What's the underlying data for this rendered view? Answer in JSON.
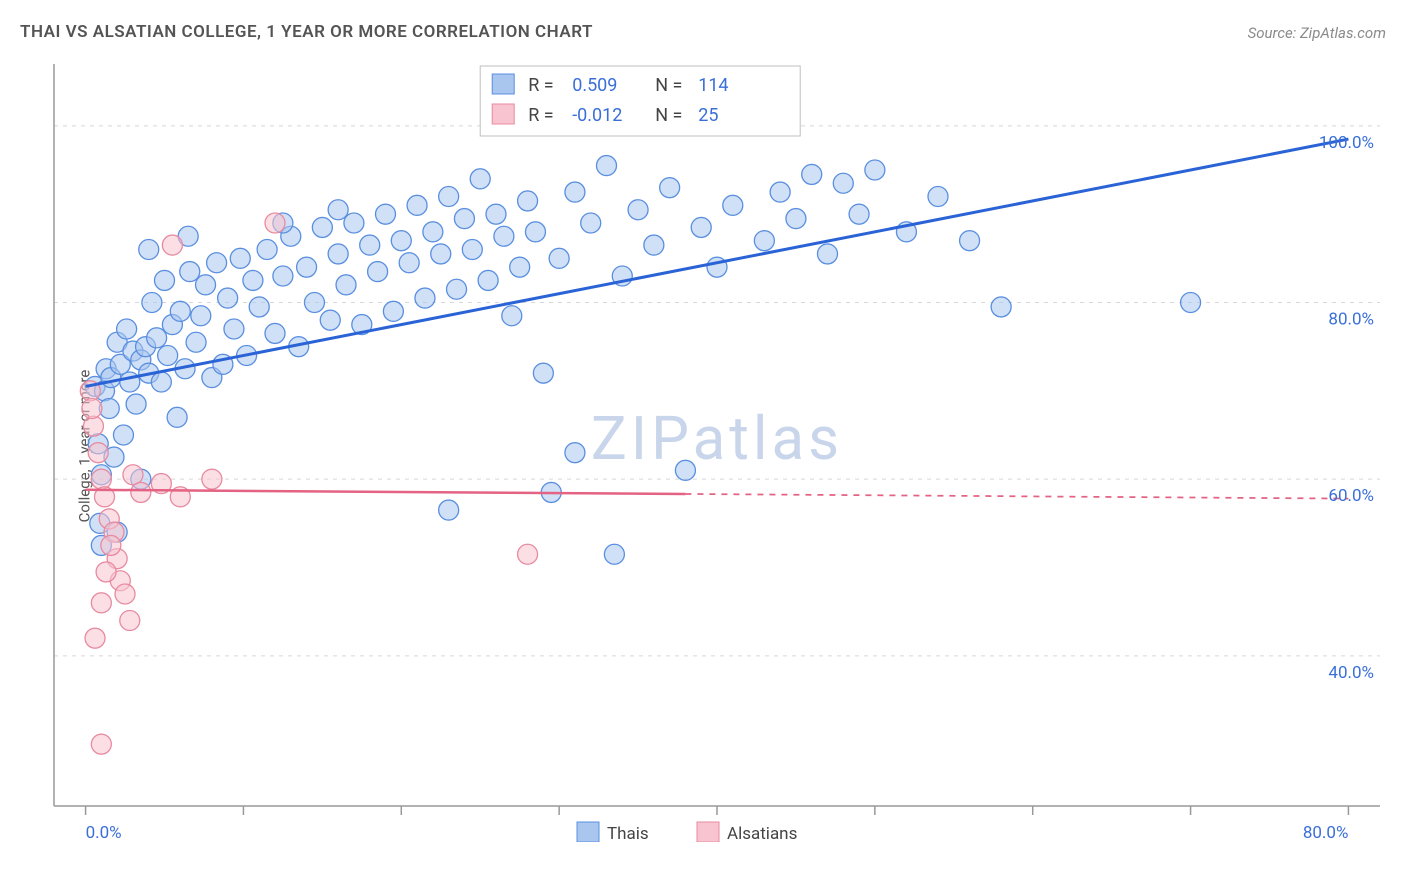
{
  "title": "THAI VS ALSATIAN COLLEGE, 1 YEAR OR MORE CORRELATION CHART",
  "source_label": "Source: ZipAtlas.com",
  "watermark": "ZIPatlas",
  "ylabel": "College, 1 year or more",
  "chart": {
    "type": "scatter",
    "background_color": "#ffffff",
    "grid_color": "#d8d8d8",
    "axis_color": "#999999",
    "tick_color": "#999999",
    "label_color": "#3a6fd8",
    "xlim": [
      -2,
      82
    ],
    "ylim": [
      23,
      107
    ],
    "xtick_positions": [
      0,
      10,
      20,
      30,
      40,
      50,
      60,
      70,
      80
    ],
    "xtick_labels_shown": {
      "0": "0.0%",
      "80": "80.0%"
    },
    "ytick_positions": [
      40,
      60,
      80,
      100
    ],
    "ytick_labels": {
      "40": "40.0%",
      "60": "60.0%",
      "80": "80.0%",
      "100": "100.0%"
    },
    "marker_radius": 10,
    "marker_radius_large": 16,
    "legend_top": {
      "border_color": "#bfbfbf",
      "bg": "#ffffff",
      "rows": [
        {
          "swatch_fill": "#a9c6ef",
          "swatch_stroke": "#5a8fe0",
          "R_label": "R = ",
          "R_value": "0.509",
          "N_label": "N = ",
          "N_value": "114"
        },
        {
          "swatch_fill": "#f7c4cf",
          "swatch_stroke": "#e88aa0",
          "R_label": "R = ",
          "R_value": "-0.012",
          "N_label": "N = ",
          "N_value": "25"
        }
      ]
    },
    "legend_bottom": {
      "items": [
        {
          "swatch_fill": "#a9c6ef",
          "swatch_stroke": "#5a8fe0",
          "label": "Thais"
        },
        {
          "swatch_fill": "#f7c4cf",
          "swatch_stroke": "#e88aa0",
          "label": "Alsatians"
        }
      ]
    },
    "series": [
      {
        "name": "Thais",
        "marker_fill": "#a9c6ef",
        "marker_fill_opacity": 0.55,
        "marker_stroke": "#5a8fe0",
        "trend": {
          "x1": 0,
          "y1": 70.5,
          "x2": 80,
          "y2": 98.5,
          "color": "#2a63d6",
          "width": 3,
          "solid_until_x": 80
        },
        "points": [
          [
            0.6,
            70.5
          ],
          [
            0.8,
            64.0
          ],
          [
            0.9,
            55.0
          ],
          [
            1.0,
            60.5
          ],
          [
            1.2,
            70.0
          ],
          [
            1.3,
            72.5
          ],
          [
            1.5,
            68.0
          ],
          [
            1.6,
            71.5
          ],
          [
            1.8,
            62.5
          ],
          [
            2.0,
            75.5
          ],
          [
            2.2,
            73.0
          ],
          [
            2.4,
            65.0
          ],
          [
            2.6,
            77.0
          ],
          [
            2.8,
            71.0
          ],
          [
            3.0,
            74.5
          ],
          [
            3.2,
            68.5
          ],
          [
            3.5,
            73.5
          ],
          [
            3.8,
            75.0
          ],
          [
            4.0,
            72.0
          ],
          [
            4.2,
            80.0
          ],
          [
            4.5,
            76.0
          ],
          [
            4.8,
            71.0
          ],
          [
            5.0,
            82.5
          ],
          [
            5.2,
            74.0
          ],
          [
            5.5,
            77.5
          ],
          [
            5.8,
            67.0
          ],
          [
            6.0,
            79.0
          ],
          [
            6.3,
            72.5
          ],
          [
            6.6,
            83.5
          ],
          [
            7.0,
            75.5
          ],
          [
            7.3,
            78.5
          ],
          [
            7.6,
            82.0
          ],
          [
            8.0,
            71.5
          ],
          [
            8.3,
            84.5
          ],
          [
            8.7,
            73.0
          ],
          [
            9.0,
            80.5
          ],
          [
            9.4,
            77.0
          ],
          [
            9.8,
            85.0
          ],
          [
            10.2,
            74.0
          ],
          [
            10.6,
            82.5
          ],
          [
            11.0,
            79.5
          ],
          [
            11.5,
            86.0
          ],
          [
            12.0,
            76.5
          ],
          [
            12.5,
            83.0
          ],
          [
            13.0,
            87.5
          ],
          [
            13.5,
            75.0
          ],
          [
            14.0,
            84.0
          ],
          [
            14.5,
            80.0
          ],
          [
            15.0,
            88.5
          ],
          [
            15.5,
            78.0
          ],
          [
            16.0,
            85.5
          ],
          [
            16.5,
            82.0
          ],
          [
            17.0,
            89.0
          ],
          [
            17.5,
            77.5
          ],
          [
            18.0,
            86.5
          ],
          [
            18.5,
            83.5
          ],
          [
            19.0,
            90.0
          ],
          [
            19.5,
            79.0
          ],
          [
            20.0,
            87.0
          ],
          [
            20.5,
            84.5
          ],
          [
            21.0,
            91.0
          ],
          [
            21.5,
            80.5
          ],
          [
            22.0,
            88.0
          ],
          [
            22.5,
            85.5
          ],
          [
            23.0,
            92.0
          ],
          [
            23.5,
            81.5
          ],
          [
            24.0,
            89.5
          ],
          [
            24.5,
            86.0
          ],
          [
            25.0,
            94.0
          ],
          [
            25.5,
            82.5
          ],
          [
            26.0,
            90.0
          ],
          [
            26.5,
            87.5
          ],
          [
            27.0,
            78.5
          ],
          [
            27.5,
            84.0
          ],
          [
            28.0,
            91.5
          ],
          [
            28.5,
            88.0
          ],
          [
            29.0,
            72.0
          ],
          [
            30.0,
            85.0
          ],
          [
            31.0,
            92.5
          ],
          [
            32.0,
            89.0
          ],
          [
            33.0,
            95.5
          ],
          [
            34.0,
            83.0
          ],
          [
            35.0,
            90.5
          ],
          [
            36.0,
            86.5
          ],
          [
            37.0,
            93.0
          ],
          [
            38.0,
            61.0
          ],
          [
            39.0,
            88.5
          ],
          [
            40.0,
            84.0
          ],
          [
            41.0,
            91.0
          ],
          [
            42.0,
            102.0
          ],
          [
            43.0,
            87.0
          ],
          [
            44.0,
            92.5
          ],
          [
            45.0,
            89.5
          ],
          [
            46.0,
            94.5
          ],
          [
            47.0,
            85.5
          ],
          [
            48.0,
            93.5
          ],
          [
            49.0,
            90.0
          ],
          [
            50.0,
            95.0
          ],
          [
            52.0,
            88.0
          ],
          [
            54.0,
            92.0
          ],
          [
            56.0,
            87.0
          ],
          [
            58.0,
            79.5
          ],
          [
            70.0,
            80.0
          ],
          [
            23.0,
            56.5
          ],
          [
            33.5,
            51.5
          ],
          [
            2.0,
            54.0
          ],
          [
            1.0,
            52.5
          ],
          [
            3.5,
            60.0
          ],
          [
            29.5,
            58.5
          ],
          [
            31.0,
            63.0
          ],
          [
            6.5,
            87.5
          ],
          [
            12.5,
            89.0
          ],
          [
            16.0,
            90.5
          ],
          [
            4.0,
            86.0
          ]
        ]
      },
      {
        "name": "Alsatians",
        "marker_fill": "#f7c4cf",
        "marker_fill_opacity": 0.55,
        "marker_stroke": "#e88aa0",
        "trend": {
          "x1": 0,
          "y1": 58.8,
          "x2": 80,
          "y2": 57.8,
          "color": "#e46283",
          "width": 2.5,
          "solid_until_x": 38
        },
        "points": [
          [
            0.3,
            70.0
          ],
          [
            0.5,
            66.0
          ],
          [
            0.8,
            63.0
          ],
          [
            1.0,
            60.0
          ],
          [
            1.2,
            58.0
          ],
          [
            1.5,
            55.5
          ],
          [
            1.8,
            54.0
          ],
          [
            2.0,
            51.0
          ],
          [
            2.2,
            48.5
          ],
          [
            2.5,
            47.0
          ],
          [
            2.8,
            44.0
          ],
          [
            1.0,
            46.0
          ],
          [
            1.3,
            49.5
          ],
          [
            1.6,
            52.5
          ],
          [
            3.0,
            60.5
          ],
          [
            3.5,
            58.5
          ],
          [
            4.8,
            59.5
          ],
          [
            5.5,
            86.5
          ],
          [
            6.0,
            58.0
          ],
          [
            8.0,
            60.0
          ],
          [
            12.0,
            89.0
          ],
          [
            28.0,
            51.5
          ],
          [
            1.0,
            30.0
          ],
          [
            0.6,
            42.0
          ],
          [
            0.4,
            68.0
          ]
        ]
      }
    ]
  }
}
